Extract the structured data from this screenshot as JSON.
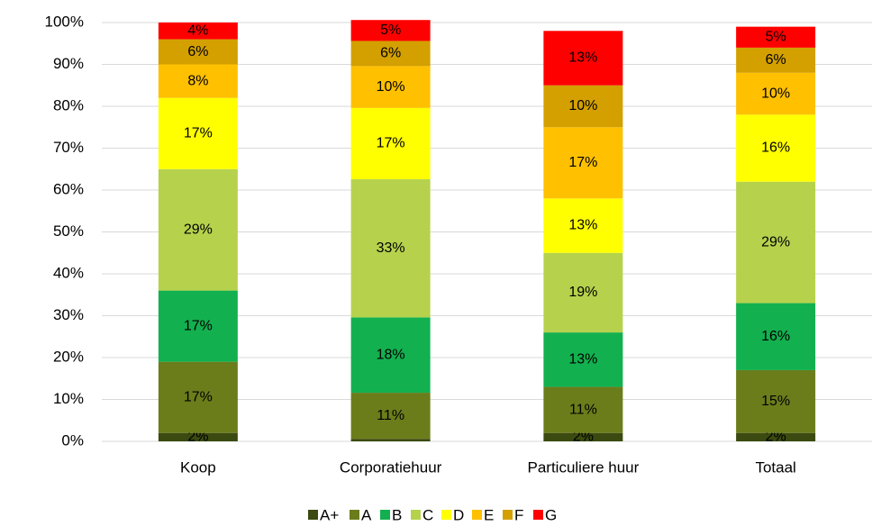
{
  "chart_data": {
    "type": "stacked_bar",
    "categories": [
      "Koop",
      "Corporatiehuur",
      "Particuliere huur",
      "Totaal"
    ],
    "series": [
      {
        "name": "A+",
        "color": "#3b4a10",
        "values": [
          2,
          0.6,
          2,
          2
        ],
        "value_labels": [
          "2%",
          null,
          "2%",
          "2%"
        ]
      },
      {
        "name": "A",
        "color": "#6b7d1b",
        "values": [
          17,
          11,
          11,
          15
        ],
        "value_labels": [
          "17%",
          "11%",
          "11%",
          "15%"
        ]
      },
      {
        "name": "B",
        "color": "#13b04f",
        "values": [
          17,
          18,
          13,
          16
        ],
        "value_labels": [
          "17%",
          "18%",
          "13%",
          "16%"
        ]
      },
      {
        "name": "C",
        "color": "#b6d24d",
        "values": [
          29,
          33,
          19,
          29
        ],
        "value_labels": [
          "29%",
          "33%",
          "19%",
          "29%"
        ]
      },
      {
        "name": "D",
        "color": "#ffff00",
        "values": [
          17,
          17,
          13,
          16
        ],
        "value_labels": [
          "17%",
          "17%",
          "13%",
          "16%"
        ]
      },
      {
        "name": "E",
        "color": "#ffc000",
        "values": [
          8,
          10,
          17,
          10
        ],
        "value_labels": [
          "8%",
          "10%",
          "17%",
          "10%"
        ]
      },
      {
        "name": "F",
        "color": "#d3a000",
        "values": [
          6,
          6,
          10,
          6
        ],
        "value_labels": [
          "6%",
          "6%",
          "10%",
          "6%"
        ]
      },
      {
        "name": "G",
        "color": "#ff0000",
        "values": [
          4,
          5,
          13,
          5
        ],
        "value_labels": [
          "4%",
          "5%",
          "13%",
          "5%"
        ]
      }
    ],
    "ylim": [
      0,
      100
    ],
    "yticks": [
      {
        "value": 0,
        "label": "0%"
      },
      {
        "value": 10,
        "label": "10%"
      },
      {
        "value": 20,
        "label": "20%"
      },
      {
        "value": 30,
        "label": "30%"
      },
      {
        "value": 40,
        "label": "40%"
      },
      {
        "value": 50,
        "label": "50%"
      },
      {
        "value": 60,
        "label": "60%"
      },
      {
        "value": 70,
        "label": "70%"
      },
      {
        "value": 80,
        "label": "80%"
      },
      {
        "value": 90,
        "label": "90%"
      },
      {
        "value": 100,
        "label": "100%"
      }
    ],
    "grid": true,
    "legend": "bottom"
  }
}
